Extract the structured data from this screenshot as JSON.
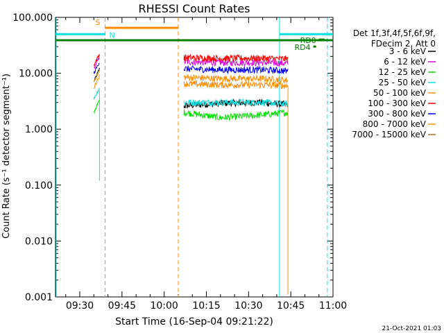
{
  "chart_data": {
    "type": "line",
    "title": "RHESSI Count Rates",
    "xlabel": "Start Time (16-Sep-04 09:21:22)",
    "ylabel": "Count Rate (s⁻¹ detector segment⁻¹)",
    "y_scale": "log",
    "ylim": [
      0.001,
      100
    ],
    "xlim": [
      "09:21:22",
      "11:00"
    ],
    "y_tick_labels": [
      "100.000",
      "10.000",
      "1.000",
      "0.100",
      "0.010",
      "0.001"
    ],
    "x_tick_labels": [
      "09:30",
      "09:45",
      "10:00",
      "10:15",
      "10:30",
      "10:45",
      "11:00"
    ],
    "grid": false,
    "legend_position": "right",
    "legend_header": [
      "Det 1f,3f,4f,5f,6f,9f,",
      "FDecim 2, Att 0"
    ],
    "series": [
      {
        "name": "3 - 6 keV",
        "color": "#000000",
        "x": [
          "09:35",
          "09:37",
          "10:07",
          "10:20",
          "10:35",
          "10:44"
        ],
        "values": [
          7,
          12,
          2.6,
          2.9,
          3.0,
          2.7
        ]
      },
      {
        "name": "6 - 12 keV",
        "color": "#e000e0",
        "x": [
          "09:35",
          "09:37",
          "10:07",
          "10:20",
          "10:35",
          "10:44"
        ],
        "values": [
          12,
          20,
          16,
          15.5,
          15.5,
          15
        ]
      },
      {
        "name": "12 - 25 keV",
        "color": "#00e000",
        "x": [
          "09:35",
          "09:37",
          "10:07",
          "10:20",
          "10:35",
          "10:44"
        ],
        "values": [
          2.0,
          3.3,
          2.0,
          1.6,
          1.8,
          2.0
        ]
      },
      {
        "name": "25 - 50 keV",
        "color": "#00e0e0",
        "x": [
          "09:35",
          "09:37",
          "10:07",
          "10:20",
          "10:35",
          "10:44"
        ],
        "values": [
          3.5,
          5.5,
          3.0,
          3.0,
          3.0,
          2.8
        ]
      },
      {
        "name": "50 - 100 keV",
        "color": "#ff8c00",
        "x": [
          "09:35",
          "09:37",
          "10:07",
          "10:20",
          "10:35",
          "10:44"
        ],
        "values": [
          7,
          11,
          8.5,
          8.0,
          8.0,
          7.5
        ]
      },
      {
        "name": "100 - 300 keV",
        "color": "#ff0000",
        "x": [
          "09:35",
          "09:37",
          "10:07",
          "10:20",
          "10:35",
          "10:44"
        ],
        "values": [
          14,
          22,
          19,
          18.5,
          18.5,
          18
        ]
      },
      {
        "name": "300 - 800 keV",
        "color": "#0000ff",
        "x": [
          "09:35",
          "09:37",
          "10:07",
          "10:20",
          "10:35",
          "10:44"
        ],
        "values": [
          10,
          16,
          12,
          11.5,
          11.5,
          11
        ]
      },
      {
        "name": "800 - 7000 keV",
        "color": "#ff8c00",
        "x": [
          "09:35",
          "09:37",
          "10:07",
          "10:20",
          "10:35",
          "10:44"
        ],
        "values": [
          5.5,
          9,
          6.5,
          6.2,
          6.2,
          6.0
        ]
      },
      {
        "name": "7000 - 15000 keV",
        "color": "#b87020",
        "x": [],
        "values": []
      }
    ],
    "flag_bars": [
      {
        "label": "S",
        "color": "#ff8c00",
        "start": "09:39",
        "end": "10:05",
        "level": 65
      },
      {
        "label": "N",
        "color": "#00e0e0",
        "start": "09:21:22",
        "end": "09:39",
        "level": 50
      },
      {
        "label": "",
        "color": "#00e0e0",
        "start": "10:41",
        "end": "11:00",
        "level": 50
      },
      {
        "label": "",
        "color": "#008000",
        "start": "09:21:22",
        "end": "11:00",
        "level": 39
      },
      {
        "label": "RD0",
        "color": "#008000",
        "start": "10:55",
        "end": "10:57",
        "level": 40
      },
      {
        "label": "RD4",
        "color": "#008000",
        "start": "10:53",
        "end": "10:54",
        "level": 30
      }
    ],
    "vertical_markers": [
      {
        "time": "09:39",
        "color": "#ff8c00",
        "style": "dashed"
      },
      {
        "time": "10:05",
        "color": "#ff8c00",
        "style": "dashed"
      },
      {
        "time": "09:21:22",
        "color": "#00e0e0",
        "style": "solid"
      },
      {
        "time": "10:41",
        "color": "#00e0e0",
        "style": "solid"
      },
      {
        "time": "10:58",
        "color": "#00e0e0",
        "style": "dashed"
      }
    ],
    "timestamp": "21-Oct-2021 01:03"
  }
}
